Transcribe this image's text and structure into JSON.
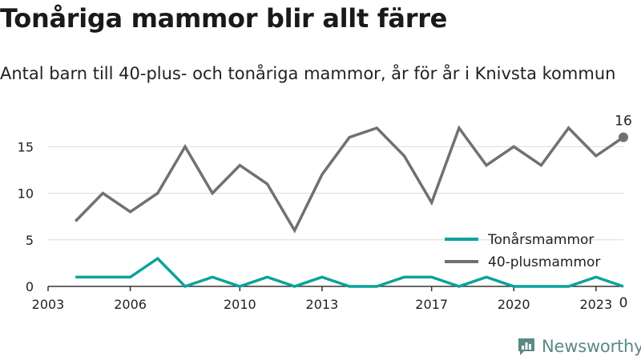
{
  "header": {
    "title": "Tonåriga mammor blir allt färre",
    "subtitle": "Antal barn till 40-plus- och tonåriga mammor, år för år i Knivsta kommun"
  },
  "brand": {
    "name": "Newsworthy"
  },
  "colors": {
    "teen": "#0aa39a",
    "plus40": "#707075",
    "grid": "#dcdcdc",
    "axis": "#333333",
    "brand": "#5b8a83"
  },
  "chart_data": {
    "type": "line",
    "x": [
      2004,
      2005,
      2006,
      2007,
      2008,
      2009,
      2010,
      2011,
      2012,
      2013,
      2014,
      2015,
      2016,
      2017,
      2018,
      2019,
      2020,
      2021,
      2022,
      2023,
      2024
    ],
    "series": [
      {
        "name": "Tonårsmammor",
        "color": "#0aa39a",
        "values": [
          1,
          1,
          1,
          3,
          0,
          1,
          0,
          1,
          0,
          1,
          0,
          0,
          1,
          1,
          0,
          1,
          0,
          0,
          0,
          1,
          0
        ],
        "end_label": "0"
      },
      {
        "name": "40-plusmammor",
        "color": "#707075",
        "values": [
          7,
          10,
          8,
          10,
          15,
          10,
          13,
          11,
          6,
          12,
          16,
          17,
          14,
          9,
          17,
          13,
          15,
          13,
          17,
          14,
          16
        ],
        "end_label": "16"
      }
    ],
    "x_ticks": [
      2003,
      2006,
      2010,
      2013,
      2017,
      2020,
      2023
    ],
    "y_ticks": [
      0,
      5,
      10,
      15
    ],
    "xlim": [
      2003,
      2024
    ],
    "ylim": [
      0,
      17
    ],
    "grid": true,
    "legend": "right"
  }
}
